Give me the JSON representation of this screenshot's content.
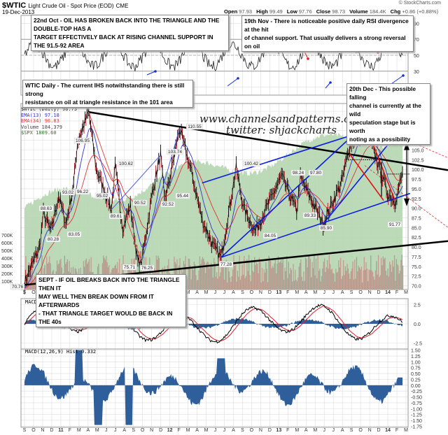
{
  "header": {
    "symbol": "$WTIC",
    "description": "Light Crude Oil - Spot Price (EOD)",
    "exchange": "CME",
    "date": "19-Dec-2013",
    "source": "© StockCharts.com",
    "quote": {
      "open_label": "Open",
      "open": "97.93",
      "high_label": "High",
      "high": "99.49",
      "low_label": "Low",
      "low": "97.76",
      "close_label": "Close",
      "close": "98.73",
      "volume_label": "Volume",
      "volume": "184.4K",
      "chg_label": "Chg",
      "chg": "+0.86 (+0.88%)"
    }
  },
  "notes": {
    "oct22": "22nd Oct - OIL HAS BROKEN BACK INTO THE TRIANGLE AND THE DOUBLE-TOP HAS A\nTARGET EFFECTIVELY BACK AT  RISING CHANNEL SUPPORT IN THE 91.5-92 AREA",
    "nov19": "19th Nov - There is noticeable positive daily RSI divergence at the hit\nof channel support. That usually delivers a strong reversal on oil",
    "wtic_daily": "WTIC Daily - The current IHS notwithstanding there is still strong\nresistance on oil at triangle resistance in the 101 area",
    "dec20": "20th Dec - This possible falling\nchannel is currently at the wild\nspeculation stage but is worth\nnoting as a possibility",
    "sept": "SEPT - IF OIL BREAKS BACK INTO THE TRIANGLE THEN IT\nMAY WELL THEN BREAK DOWN FROM IT AFTERWARDS\n- THAT TRIANGLE TARGET WOULD BE BACK IN THE 40s"
  },
  "watermark": {
    "line1": "www.channelsandpatterns.com",
    "line2": "twitter: shjackcharts"
  },
  "legend": {
    "main": "$WTIC (Daily) 98.73",
    "ema13": "EMA(13) 97.18",
    "ema34": "EMA(34) 96.83",
    "volume": "Volume 184,379",
    "spx": "$SPX  1809.60"
  },
  "macd_legend": {
    "label": "MACD(12,26,9) 0.568,",
    "signal": "0.237,",
    "hist": "0.332"
  },
  "hist_legend": "MACD(12,26,9) Hist 0.332",
  "colors": {
    "price": "#000000",
    "ema13": "#3333cc",
    "ema34": "#e0303a",
    "spx_fill": "#b5d6b0",
    "volume": "#c98a86",
    "channel": "#0a1ee6",
    "trend": "#000000",
    "red_channel": "#e01010",
    "hist": "#2f5f9a",
    "grid": "#dddddd"
  },
  "chart_data": [
    {
      "type": "line",
      "title": "RSI(14)",
      "yticks": [
        10,
        30,
        50,
        70,
        90
      ],
      "ylim": [
        0,
        100
      ],
      "overbought": 70,
      "oversold": 30
    },
    {
      "type": "line",
      "title": "$WTIC (Daily) 98.73",
      "ylabel": "Price",
      "yticks": [
        70.0,
        72.5,
        75.0,
        77.5,
        80.0,
        82.5,
        85.0,
        87.5,
        90.0,
        92.5,
        95.0,
        97.5,
        100.0,
        102.5,
        105.0,
        107.5,
        110.0,
        112.5,
        115.0
      ],
      "volume_ticks": [
        "100K",
        "200K",
        "300K",
        "400K",
        "500K",
        "600K",
        "700K"
      ],
      "ylim": [
        69,
        117
      ],
      "xticks": [
        "S",
        "O",
        "N",
        "D",
        "11",
        "F",
        "M",
        "A",
        "M",
        "J",
        "J",
        "A",
        "S",
        "O",
        "N",
        "D",
        "12",
        "F",
        "M",
        "A",
        "M",
        "J",
        "J",
        "A",
        "S",
        "O",
        "N",
        "D",
        "13",
        "F",
        "M",
        "A",
        "M",
        "J",
        "J",
        "A",
        "S",
        "O",
        "N",
        "D",
        "14",
        "F",
        "M"
      ],
      "price_labels": [
        {
          "label": "70.76",
          "x": 0.0
        },
        {
          "label": "80.28",
          "x": 0.09
        },
        {
          "label": "83.05",
          "x": 0.18
        },
        {
          "label": "88.63",
          "x": 0.05
        },
        {
          "label": "93.02",
          "x": 0.09
        },
        {
          "label": "96.22",
          "x": 0.13
        },
        {
          "label": "106.95",
          "x": 0.14
        },
        {
          "label": "114.83",
          "x": 0.17
        },
        {
          "label": "95.02",
          "x": 0.21
        },
        {
          "label": "100.62",
          "x": 0.24
        },
        {
          "label": "89.61",
          "x": 0.23
        },
        {
          "label": "90.52",
          "x": 0.28
        },
        {
          "label": "75.71",
          "x": 0.26
        },
        {
          "label": "76.25",
          "x": 0.31
        },
        {
          "label": "103.74",
          "x": 0.36
        },
        {
          "label": "92.52",
          "x": 0.35
        },
        {
          "label": "95.44",
          "x": 0.38
        },
        {
          "label": "110.55",
          "x": 0.41
        },
        {
          "label": "77.28",
          "x": 0.52
        },
        {
          "label": "100.42",
          "x": 0.56
        },
        {
          "label": "84.05",
          "x": 0.61
        },
        {
          "label": "98.24",
          "x": 0.68
        },
        {
          "label": "89.33",
          "x": 0.72
        },
        {
          "label": "97.80",
          "x": 0.73
        },
        {
          "label": "85.90",
          "x": 0.79
        },
        {
          "label": "112.24",
          "x": 0.9
        },
        {
          "label": "91.77",
          "x": 0.98
        }
      ],
      "series": [
        {
          "name": "$WTIC",
          "points": [
            [
              0,
              70.76
            ],
            [
              0.04,
              80
            ],
            [
              0.05,
              88.63
            ],
            [
              0.07,
              84
            ],
            [
              0.09,
              93.02
            ],
            [
              0.11,
              86
            ],
            [
              0.13,
              96.22
            ],
            [
              0.14,
              106.95
            ],
            [
              0.17,
              114.83
            ],
            [
              0.19,
              100
            ],
            [
              0.21,
              95.02
            ],
            [
              0.23,
              89.61
            ],
            [
              0.24,
              100.62
            ],
            [
              0.26,
              85
            ],
            [
              0.28,
              90.52
            ],
            [
              0.3,
              76
            ],
            [
              0.31,
              76.25
            ],
            [
              0.34,
              95
            ],
            [
              0.36,
              103.74
            ],
            [
              0.37,
              92.52
            ],
            [
              0.38,
              95.44
            ],
            [
              0.41,
              110.55
            ],
            [
              0.44,
              100
            ],
            [
              0.47,
              87
            ],
            [
              0.5,
              80
            ],
            [
              0.52,
              77.28
            ],
            [
              0.56,
              100.42
            ],
            [
              0.58,
              90
            ],
            [
              0.61,
              84.05
            ],
            [
              0.64,
              90
            ],
            [
              0.68,
              98.24
            ],
            [
              0.72,
              89.33
            ],
            [
              0.73,
              97.8
            ],
            [
              0.76,
              92
            ],
            [
              0.79,
              85.9
            ],
            [
              0.84,
              97
            ],
            [
              0.86,
              106
            ],
            [
              0.9,
              112.24
            ],
            [
              0.93,
              103
            ],
            [
              0.96,
              94
            ],
            [
              0.98,
              91.77
            ],
            [
              1.0,
              98.73
            ]
          ]
        },
        {
          "name": "EMA(13)",
          "last": 97.18
        },
        {
          "name": "EMA(34)",
          "last": 96.83
        },
        {
          "name": "Volume",
          "last": 184379
        },
        {
          "name": "$SPX",
          "last": 1809.6
        }
      ],
      "annotations": [
        "triangle resistance ~101",
        "triangle support ~80-81",
        "rising channel support 91.5-92",
        "double-top 112.24",
        "falling channel (dashed red)"
      ]
    },
    {
      "type": "line",
      "title": "MACD(12,26,9) 0.568, 0.237, 0.332",
      "yticks": [
        -2.5,
        0.0,
        2.5
      ],
      "series": [
        {
          "name": "MACD",
          "last": 0.568
        },
        {
          "name": "Signal",
          "last": 0.237
        },
        {
          "name": "Hist",
          "last": 0.332
        }
      ]
    },
    {
      "type": "area",
      "title": "MACD(12,26,9) Hist 0.332",
      "yticks": [
        1.5,
        1.25,
        1.0,
        0.75,
        0.5,
        0.25,
        0.0,
        -0.25,
        -0.5,
        -0.75,
        -1.0,
        -1.25,
        -1.5,
        -1.75
      ],
      "ylim": [
        -1.8,
        1.55
      ],
      "last": 0.332
    }
  ]
}
